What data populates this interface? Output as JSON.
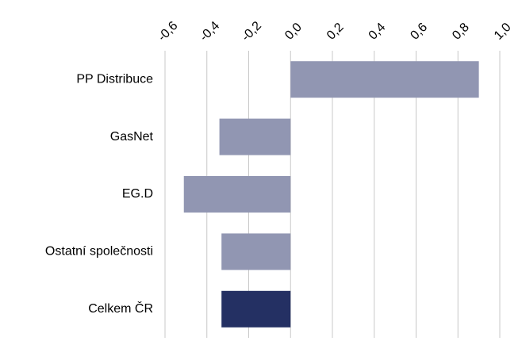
{
  "chart_data": {
    "type": "barh",
    "categories": [
      "PP Distribuce",
      "GasNet",
      "EG.D",
      "Ostatní společnosti",
      "Celkem ČR"
    ],
    "values": [
      0.9,
      -0.34,
      -0.51,
      -0.33,
      -0.33
    ],
    "colors": [
      "#9196b2",
      "#9196b2",
      "#9196b2",
      "#9196b2",
      "#243063"
    ],
    "xlim": [
      -0.6,
      1.0
    ],
    "xticks": [
      {
        "value": -0.6,
        "label": "-0,6"
      },
      {
        "value": -0.4,
        "label": "-0,4"
      },
      {
        "value": -0.2,
        "label": "-0,2"
      },
      {
        "value": 0,
        "label": "0,0"
      },
      {
        "value": 0.2,
        "label": "0,2"
      },
      {
        "value": 0.4,
        "label": "0,4"
      },
      {
        "value": 0.6,
        "label": "0,6"
      },
      {
        "value": 0.8,
        "label": "0,8"
      },
      {
        "value": 1.0,
        "label": "1,0"
      }
    ],
    "grid": true
  }
}
